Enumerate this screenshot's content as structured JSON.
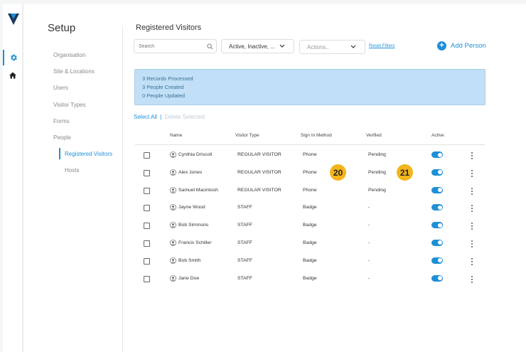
{
  "colors": {
    "accent": "#1f8fd6",
    "alert_bg": "#c1e0f7",
    "badge": "#f3b51b"
  },
  "rail": {
    "logo_icon": "brand-logo-icon",
    "items": [
      {
        "icon": "gear-icon",
        "active": true
      },
      {
        "icon": "home-icon",
        "active": false
      }
    ]
  },
  "setup": {
    "title": "Setup",
    "nav": [
      "Organisation",
      "Site & Locations",
      "Users",
      "Visitor Types",
      "Forms",
      "People",
      "Registered Visitors",
      "Hosts"
    ]
  },
  "page": {
    "title": "Registered Visitors"
  },
  "toolbar": {
    "search_placeholder": "Search",
    "status_filter": "Active, Inactive, ...",
    "actions_placeholder": "Actions..",
    "reset_filters": "Reset Filters",
    "add_person": "Add Person"
  },
  "alert": {
    "lines": [
      "3 Records Processed",
      "3 People Created",
      "0 People Updated"
    ]
  },
  "selection": {
    "select_all": "Select All",
    "separator": "|",
    "delete_selected": "Delete Selected"
  },
  "table": {
    "headers": [
      "Name",
      "Visitor Type",
      "Sign In Method",
      "Verified",
      "Active"
    ],
    "rows": [
      {
        "name": "Cynthia Driscoll",
        "type": "REGULAR VISITOR",
        "method": "Phone",
        "verified": "Pending",
        "active": true
      },
      {
        "name": "Alex Jones",
        "type": "REGULAR VISITOR",
        "method": "Phone",
        "verified": "Pending",
        "active": true
      },
      {
        "name": "Samuel Macintosh",
        "type": "REGULAR VISITOR",
        "method": "Phone",
        "verified": "Pending",
        "active": true
      },
      {
        "name": "Jayne Wood",
        "type": "STAFF",
        "method": "Badge",
        "verified": "-",
        "active": true
      },
      {
        "name": "Bob Simmons",
        "type": "STAFF",
        "method": "Badge",
        "verified": "-",
        "active": true
      },
      {
        "name": "Francis Schiller",
        "type": "STAFF",
        "method": "Badge",
        "verified": "-",
        "active": true
      },
      {
        "name": "Bob Smith",
        "type": "STAFF",
        "method": "Badge",
        "verified": "-",
        "active": true
      },
      {
        "name": "Jane Doe",
        "type": "STAFF",
        "method": "Badge",
        "verified": "-",
        "active": true
      }
    ]
  },
  "callouts": {
    "a": "20",
    "b": "21"
  }
}
